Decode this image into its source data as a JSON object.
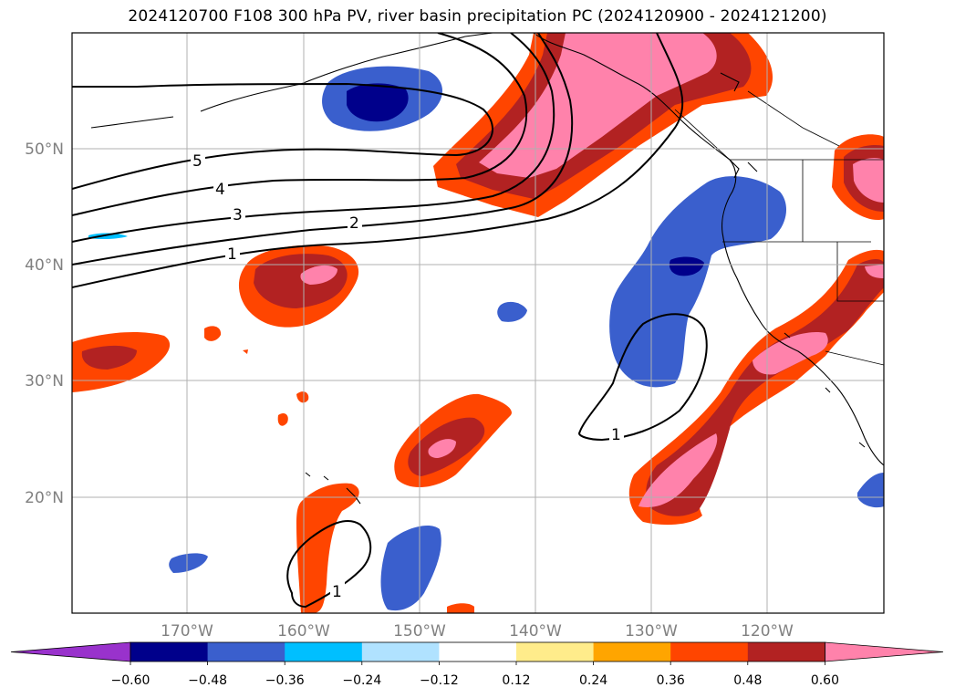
{
  "title": "2024120700 F108 300 hPa PV, river basin precipitation PC (2024120900 - 2024121200)",
  "axes": {
    "lat_labels": [
      "50°N",
      "40°N",
      "30°N",
      "20°N"
    ],
    "lon_labels": [
      "170°W",
      "160°W",
      "150°W",
      "140°W",
      "130°W",
      "120°W"
    ]
  },
  "colorbar": {
    "colors": [
      "#9932CC",
      "#00008B",
      "#3A5FCD",
      "#00BFFF",
      "#B0E2FF",
      "#FFFFFF",
      "#FFEC8B",
      "#FFA500",
      "#FF4500",
      "#B22222",
      "#FF82AB"
    ],
    "tick_labels": [
      "−0.60",
      "−0.48",
      "−0.36",
      "−0.24",
      "−0.12",
      "0.12",
      "0.24",
      "0.36",
      "0.48",
      "0.60"
    ]
  },
  "pv_contour_labels": [
    "5",
    "4",
    "3",
    "2",
    "1",
    "1",
    "1"
  ]
}
